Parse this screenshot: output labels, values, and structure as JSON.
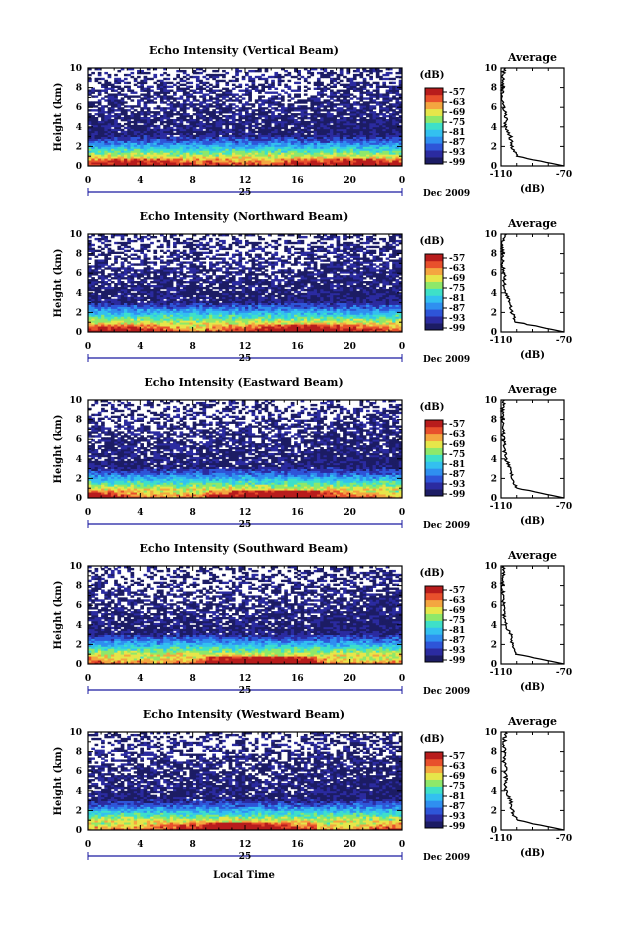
{
  "panels": [
    {
      "title": "Echo Intensity (Vertical Beam)",
      "avg_title": "Average",
      "avg_profile": [
        -70,
        -100,
        -103,
        -104,
        -107,
        -107,
        -108,
        -109,
        -109,
        -109,
        -108
      ]
    },
    {
      "title": "Echo Intensity (Northward Beam)",
      "avg_title": "Average",
      "avg_profile": [
        -70,
        -100,
        -103,
        -104,
        -107,
        -108,
        -108,
        -109,
        -109,
        -109,
        -107
      ]
    },
    {
      "title": "Echo Intensity (Eastward Beam)",
      "avg_title": "Average",
      "avg_profile": [
        -70,
        -100,
        -103,
        -104,
        -107,
        -108,
        -108,
        -109,
        -109,
        -109,
        -108
      ]
    },
    {
      "title": "Echo Intensity (Southward Beam)",
      "avg_title": "Average",
      "avg_profile": [
        -70,
        -100,
        -103,
        -104,
        -107,
        -108,
        -108,
        -109,
        -109,
        -109,
        -108
      ]
    },
    {
      "title": "Echo Intensity (Westward Beam)",
      "avg_title": "Average",
      "avg_profile": [
        -70,
        -100,
        -103,
        -104,
        -107,
        -107,
        -107,
        -108,
        -108,
        -108,
        -107
      ]
    }
  ],
  "common": {
    "ylabel": "Height (km)",
    "ytick_labels": [
      "0",
      "2",
      "4",
      "6",
      "8",
      "10"
    ],
    "xtick_labels": [
      "0",
      "4",
      "8",
      "12",
      "16",
      "20",
      "0"
    ],
    "day_label": "25",
    "date_label": "Dec 2009",
    "cbar_unit": "(dB)",
    "cbar_tick_labels": [
      "-57",
      "-63",
      "-69",
      "-75",
      "-81",
      "-87",
      "-93",
      "-99"
    ],
    "avg_xlabel": "(dB)",
    "avg_tick_labels": [
      "-110",
      "-70"
    ],
    "xlabel": "Local Time"
  },
  "chart_data": {
    "type": "heatmap",
    "title": "Echo Intensity (Vertical, Northward, Eastward, Southward, Westward Beam)",
    "xlabel": "Local Time",
    "ylabel": "Height (km)",
    "xlim": [
      0,
      24
    ],
    "ylim": [
      0,
      10
    ],
    "colorbar": {
      "label": "(dB)",
      "ticks": [
        -57,
        -63,
        -69,
        -75,
        -81,
        -87,
        -93,
        -99
      ]
    },
    "colors": [
      "#1c1c64",
      "#2b2ba0",
      "#2e55d8",
      "#2f8ff0",
      "#33c0f0",
      "#3ee0c8",
      "#8ee86a",
      "#e6e64a",
      "#f4a640",
      "#e8502c",
      "#b81c1c"
    ],
    "average": {
      "xlabel": "(dB)",
      "xlim": [
        -110,
        -70
      ],
      "heights_km": [
        0,
        1,
        2,
        3,
        4,
        5,
        6,
        7,
        8,
        9,
        10
      ]
    }
  }
}
